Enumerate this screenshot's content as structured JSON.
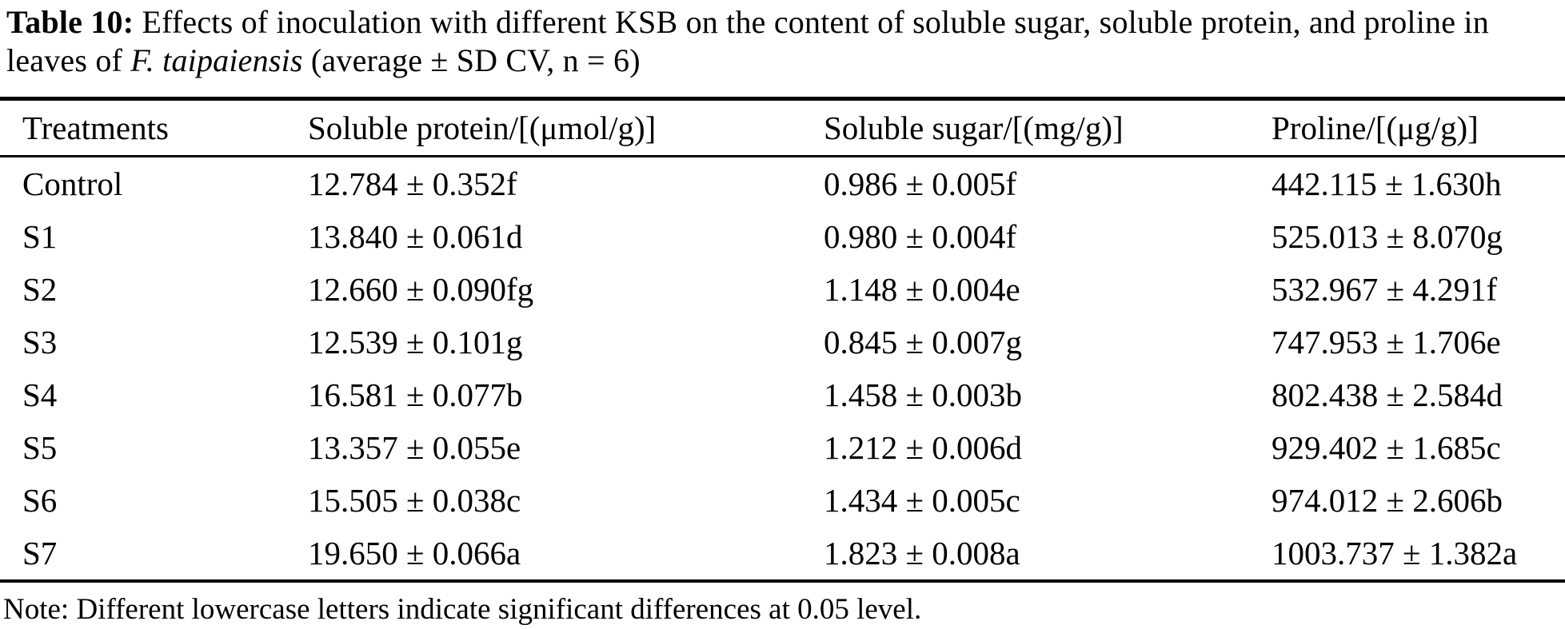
{
  "caption": {
    "label": "Table 10:",
    "pre_italic": "Effects of inoculation with different KSB on the content of soluble sugar, soluble protein, and proline in leaves of",
    "italic": "F. taipaiensis",
    "post_italic": "(average ± SD CV, n = 6)"
  },
  "table": {
    "columns": [
      "Treatments",
      "Soluble protein/[(μmol/g)]",
      "Soluble sugar/[(mg/g)]",
      "Proline/[(μg/g)]"
    ],
    "rows": [
      [
        "Control",
        "12.784 ± 0.352f",
        "0.986 ± 0.005f",
        "442.115 ± 1.630h"
      ],
      [
        "S1",
        "13.840 ± 0.061d",
        "0.980 ± 0.004f",
        "525.013 ± 8.070g"
      ],
      [
        "S2",
        "12.660 ± 0.090fg",
        "1.148 ± 0.004e",
        "532.967 ± 4.291f"
      ],
      [
        "S3",
        "12.539 ± 0.101g",
        "0.845 ± 0.007g",
        "747.953 ± 1.706e"
      ],
      [
        "S4",
        "16.581 ± 0.077b",
        "1.458 ± 0.003b",
        "802.438 ± 2.584d"
      ],
      [
        "S5",
        "13.357 ± 0.055e",
        "1.212 ± 0.006d",
        "929.402 ± 1.685c"
      ],
      [
        "S6",
        "15.505 ± 0.038c",
        "1.434 ± 0.005c",
        "974.012 ± 2.606b"
      ],
      [
        "S7",
        "19.650 ± 0.066a",
        "1.823 ± 0.008a",
        "1003.737 ± 1.382a"
      ]
    ]
  },
  "note": "Note: Different lowercase letters indicate significant differences at 0.05 level.",
  "colors": {
    "background": "#ffffff",
    "text": "#000000",
    "rule": "#000000"
  }
}
